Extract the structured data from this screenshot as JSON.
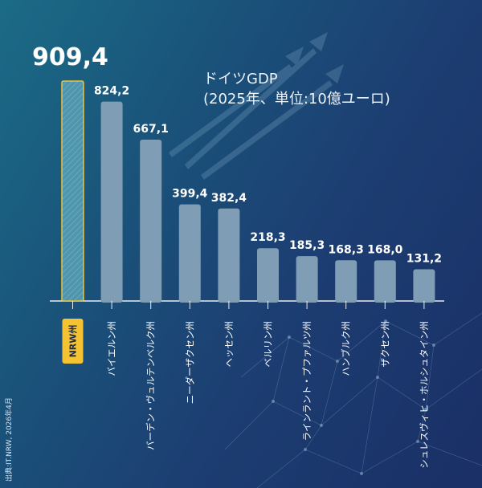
{
  "chart_data": {
    "type": "bar",
    "title": "ドイツGDP",
    "subtitle": "(2025年、単位:10億ユーロ)",
    "categories": [
      "NRW州",
      "バイエルン州",
      "バーデン・ヴュルテンベルク州",
      "ニーダーザクセン州",
      "ヘッセン州",
      "ベルリン州",
      "ラインラント・プファルツ州",
      "ハンブルク州",
      "ザクセン州",
      "シュレスヴィヒ・ホルシュタイン州"
    ],
    "values": [
      909.4,
      824.2,
      667.1,
      399.4,
      382.4,
      218.3,
      185.3,
      168.3,
      168.0,
      131.2
    ],
    "value_labels": [
      "909,4",
      "824,2",
      "667,1",
      "399,4",
      "382,4",
      "218,3",
      "185,3",
      "168,3",
      "168,0",
      "131,2"
    ],
    "highlight_index": 0,
    "ylim": [
      0,
      909.4
    ],
    "grid": false,
    "legend": "none"
  },
  "source": "出典:IT.NRW, 2026年4月",
  "colors": {
    "bar": "#7f9db4",
    "highlight_fill": "#4f95ac",
    "highlight_border": "#f0c23a",
    "badge": "#f5c231",
    "badge_text": "#1f2d44",
    "label_text": "#ffffff"
  }
}
